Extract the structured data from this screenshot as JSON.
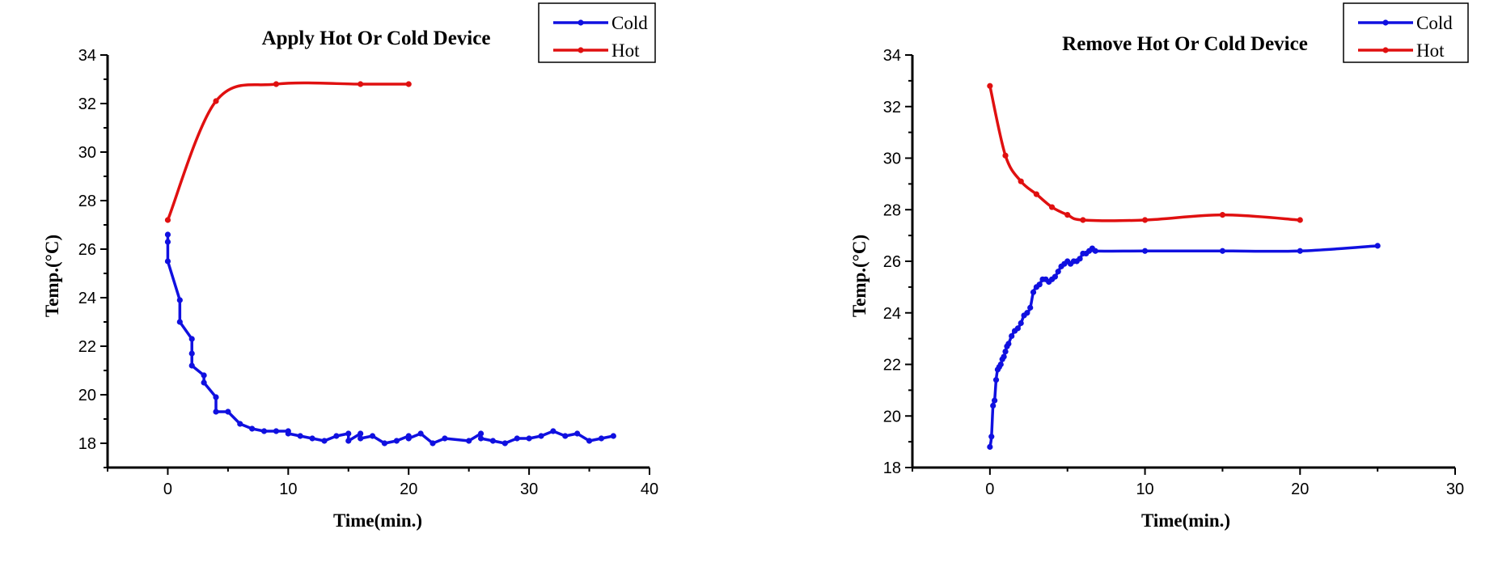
{
  "chart_data": [
    {
      "type": "line",
      "title": "Apply Hot Or Cold Device",
      "xlabel": "Time(min.)",
      "ylabel": "Temp.(°C)",
      "xlim": [
        -5,
        40
      ],
      "ylim": [
        17,
        34
      ],
      "xticks": [
        0,
        10,
        20,
        30,
        40
      ],
      "yticks": [
        18,
        20,
        22,
        24,
        26,
        28,
        30,
        32,
        34
      ],
      "grid": false,
      "legend_position": "top-right",
      "series": [
        {
          "name": "Cold",
          "color": "#1010e0",
          "smooth": false,
          "x": [
            0,
            0,
            0,
            1,
            1,
            2,
            2,
            2,
            3,
            3,
            4,
            4,
            5,
            6,
            7,
            8,
            9,
            10,
            10,
            11,
            12,
            13,
            14,
            15,
            15,
            16,
            16,
            17,
            18,
            19,
            20,
            20,
            21,
            22,
            23,
            25,
            26,
            26,
            27,
            28,
            29,
            30,
            31,
            32,
            33,
            34,
            35,
            36,
            37
          ],
          "y": [
            26.6,
            26.3,
            25.5,
            23.9,
            23.0,
            22.3,
            21.7,
            21.2,
            20.8,
            20.5,
            19.9,
            19.3,
            19.3,
            18.8,
            18.6,
            18.5,
            18.5,
            18.5,
            18.4,
            18.3,
            18.2,
            18.1,
            18.3,
            18.4,
            18.1,
            18.4,
            18.2,
            18.3,
            18.0,
            18.1,
            18.3,
            18.2,
            18.4,
            18.0,
            18.2,
            18.1,
            18.4,
            18.2,
            18.1,
            18.0,
            18.2,
            18.2,
            18.3,
            18.5,
            18.3,
            18.4,
            18.1,
            18.2,
            18.3
          ]
        },
        {
          "name": "Hot",
          "color": "#e01010",
          "smooth": true,
          "x": [
            0,
            4,
            9,
            16,
            20
          ],
          "y": [
            27.2,
            32.1,
            32.8,
            32.8,
            32.8
          ]
        }
      ]
    },
    {
      "type": "line",
      "title": "Remove Hot Or Cold Device",
      "xlabel": "Time(min.)",
      "ylabel": "Temp.(°C)",
      "xlim": [
        -5,
        30
      ],
      "ylim": [
        18,
        34
      ],
      "xticks": [
        0,
        10,
        20,
        30
      ],
      "yticks": [
        18,
        20,
        22,
        24,
        26,
        28,
        30,
        32,
        34
      ],
      "grid": false,
      "legend_position": "top-right",
      "series": [
        {
          "name": "Cold",
          "color": "#1010e0",
          "smooth": true,
          "x": [
            0,
            0.1,
            0.2,
            0.3,
            0.4,
            0.5,
            0.6,
            0.7,
            0.8,
            0.9,
            1.0,
            1.1,
            1.2,
            1.4,
            1.6,
            1.8,
            2.0,
            2.2,
            2.4,
            2.6,
            2.8,
            3.0,
            3.2,
            3.4,
            3.6,
            3.8,
            4.0,
            4.2,
            4.4,
            4.6,
            4.8,
            5.0,
            5.2,
            5.4,
            5.6,
            5.8,
            6.0,
            6.2,
            6.4,
            6.6,
            6.8,
            10,
            15,
            20,
            25
          ],
          "y": [
            18.8,
            19.2,
            20.4,
            20.6,
            21.4,
            21.8,
            21.9,
            22.0,
            22.2,
            22.3,
            22.5,
            22.7,
            22.8,
            23.1,
            23.3,
            23.4,
            23.6,
            23.9,
            24.0,
            24.2,
            24.8,
            25.0,
            25.1,
            25.3,
            25.3,
            25.2,
            25.3,
            25.4,
            25.6,
            25.8,
            25.9,
            26.0,
            25.9,
            26.0,
            26.0,
            26.1,
            26.3,
            26.3,
            26.4,
            26.5,
            26.4,
            26.4,
            26.4,
            26.4,
            26.6
          ]
        },
        {
          "name": "Hot",
          "color": "#e01010",
          "smooth": true,
          "x": [
            0,
            1,
            2,
            3,
            4,
            5,
            6,
            10,
            15,
            20
          ],
          "y": [
            32.8,
            30.1,
            29.1,
            28.6,
            28.1,
            27.8,
            27.6,
            27.6,
            27.8,
            27.6
          ]
        }
      ]
    }
  ]
}
